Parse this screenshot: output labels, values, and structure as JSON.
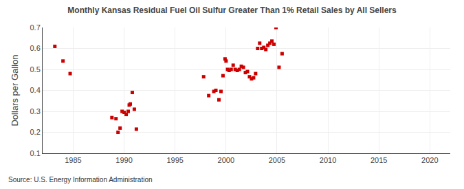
{
  "chart_data": {
    "type": "scatter",
    "title": "Monthly Kansas Residual Fuel Oil Sulfur Greater Than 1% Retail Sales by All Sellers",
    "ylabel": "Dollars per Gallon",
    "annotations": [
      "Source: U.S. Energy Information Administration"
    ],
    "color": "#cc0000",
    "marker": "square",
    "grid": true,
    "xlim": [
      1982,
      2022
    ],
    "ylim": [
      0.1,
      0.7
    ],
    "xticks": [
      1985,
      1990,
      1995,
      2000,
      2005,
      2010,
      2015,
      2020
    ],
    "yticks": [
      0.1,
      0.2,
      0.3,
      0.4,
      0.5,
      0.6,
      0.7
    ],
    "x": [
      1983.2,
      1984.0,
      1984.7,
      1988.8,
      1989.2,
      1989.4,
      1989.6,
      1989.8,
      1990.0,
      1990.2,
      1990.4,
      1990.5,
      1990.6,
      1990.8,
      1991.0,
      1991.2,
      1997.8,
      1998.3,
      1998.8,
      1999.0,
      1999.3,
      1999.5,
      1999.7,
      1999.9,
      2000.0,
      2000.15,
      2000.3,
      2000.5,
      2000.7,
      2000.9,
      2001.1,
      2001.3,
      2001.5,
      2001.7,
      2001.9,
      2002.1,
      2002.3,
      2002.5,
      2002.7,
      2002.9,
      2003.1,
      2003.3,
      2003.5,
      2003.7,
      2003.9,
      2004.1,
      2004.3,
      2004.5,
      2004.7,
      2004.9,
      2005.2,
      2005.5
    ],
    "values": [
      0.61,
      0.54,
      0.48,
      0.27,
      0.265,
      0.2,
      0.22,
      0.3,
      0.295,
      0.285,
      0.3,
      0.33,
      0.335,
      0.39,
      0.31,
      0.215,
      0.465,
      0.375,
      0.395,
      0.4,
      0.355,
      0.395,
      0.47,
      0.55,
      0.54,
      0.5,
      0.495,
      0.5,
      0.52,
      0.5,
      0.495,
      0.5,
      0.515,
      0.51,
      0.485,
      0.49,
      0.465,
      0.455,
      0.46,
      0.48,
      0.6,
      0.625,
      0.6,
      0.605,
      0.595,
      0.615,
      0.625,
      0.635,
      0.62,
      0.7,
      0.51,
      0.575
    ]
  }
}
